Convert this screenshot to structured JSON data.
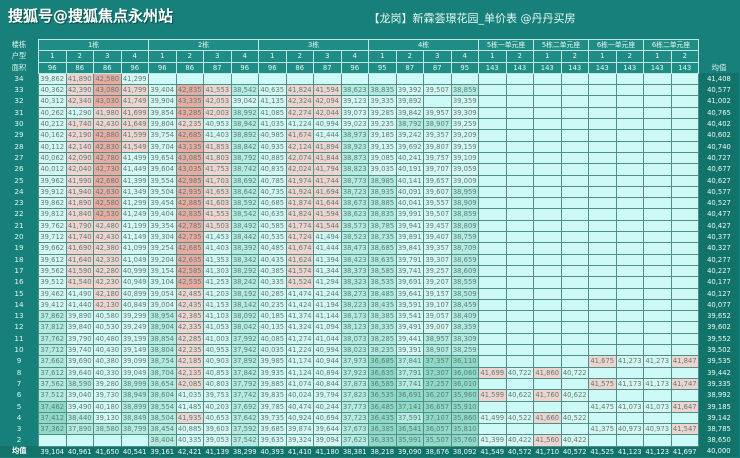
{
  "watermark": "搜狐号@搜狐焦点永州站",
  "title": "【龙岗】新霖荟璟花园_单价表 @丹丹买房",
  "header": {
    "building_label": "楼栋",
    "unit_label": "户型",
    "area_label": "面积",
    "avg_label": "均值",
    "buildings": [
      {
        "name": "1栋",
        "units": [
          "1",
          "2",
          "3",
          "4"
        ],
        "areas": [
          "96",
          "86",
          "86",
          "96"
        ]
      },
      {
        "name": "2栋",
        "units": [
          "1",
          "2",
          "3",
          "4"
        ],
        "areas": [
          "96",
          "86",
          "87",
          "96"
        ]
      },
      {
        "name": "3栋",
        "units": [
          "1",
          "2",
          "3",
          "4"
        ],
        "areas": [
          "96",
          "86",
          "87",
          "96"
        ]
      },
      {
        "name": "4栋",
        "units": [
          "1",
          "2",
          "3",
          "4"
        ],
        "areas": [
          "95",
          "87",
          "87",
          "95"
        ]
      },
      {
        "name": "5栋一单元座",
        "units": [
          "1",
          "2"
        ],
        "areas": [
          "143",
          "143"
        ]
      },
      {
        "name": "5栋二单元座",
        "units": [
          "1",
          "2"
        ],
        "areas": [
          "143",
          "143"
        ]
      },
      {
        "name": "6栋一单元座",
        "units": [
          "1",
          "2"
        ],
        "areas": [
          "143",
          "143"
        ]
      },
      {
        "name": "6栋二单元座",
        "units": [
          "1",
          "2"
        ],
        "areas": [
          "143",
          "143"
        ]
      }
    ]
  },
  "colors": {
    "high": "#e9aaa0",
    "mid_high": "#efd3ce",
    "mid": "#d6f7f1",
    "low": "#b4eadf",
    "lowest": "#8fd9c6",
    "empty": "#cdfaf6",
    "background": "#17807a"
  },
  "rows": [
    {
      "floor": "34",
      "values": [
        "39,862",
        "41,890",
        "42,580",
        "41,299",
        "",
        "",
        "",
        "",
        "",
        "",
        "",
        "",
        "",
        "",
        "",
        "",
        "",
        "",
        "",
        "",
        "",
        "",
        "",
        ""
      ],
      "avg": "41,408"
    },
    {
      "floor": "33",
      "values": [
        "40,362",
        "42,390",
        "43,080",
        "41,799",
        "39,404",
        "42,835",
        "41,553",
        "38,542",
        "40,635",
        "41,824",
        "41,594",
        "38,623",
        "38,835",
        "39,392",
        "39,507",
        "38,859",
        "",
        "",
        "",
        "",
        "",
        "",
        "",
        ""
      ],
      "avg": "40,577"
    },
    {
      "floor": "32",
      "values": [
        "40,312",
        "42,340",
        "43,030",
        "41,749",
        "39,904",
        "43,335",
        "42,053",
        "39,042",
        "41,135",
        "42,324",
        "42,094",
        "39,123",
        "39,335",
        "39,892",
        "",
        "39,359",
        "",
        "",
        "",
        "",
        "",
        "",
        "",
        ""
      ],
      "avg": "41,002"
    },
    {
      "floor": "31",
      "values": [
        "40,262",
        "41,290",
        "41,980",
        "41,699",
        "39,854",
        "43,285",
        "42,003",
        "38,992",
        "41,085",
        "42,274",
        "42,044",
        "39,073",
        "39,285",
        "39,842",
        "39,957",
        "39,309",
        "",
        "",
        "",
        "",
        "",
        "",
        "",
        ""
      ],
      "avg": "40,765"
    },
    {
      "floor": "30",
      "values": [
        "40,212",
        "41,740",
        "42,430",
        "41,649",
        "39,804",
        "42,235",
        "40,953",
        "38,942",
        "41,035",
        "41,224",
        "40,994",
        "39,023",
        "39,235",
        "38,792",
        "38,907",
        "39,259",
        "",
        "",
        "",
        "",
        "",
        "",
        "",
        ""
      ],
      "avg": "40,402"
    },
    {
      "floor": "29",
      "values": [
        "40,162",
        "42,190",
        "42,880",
        "41,599",
        "39,754",
        "42,685",
        "41,403",
        "38,892",
        "40,985",
        "41,674",
        "41,444",
        "38,973",
        "39,185",
        "39,242",
        "39,357",
        "39,209",
        "",
        "",
        "",
        "",
        "",
        "",
        "",
        ""
      ],
      "avg": "40,602"
    },
    {
      "floor": "28",
      "values": [
        "40,112",
        "42,140",
        "42,830",
        "41,549",
        "39,704",
        "43,135",
        "41,853",
        "38,842",
        "40,935",
        "42,124",
        "41,894",
        "38,923",
        "39,135",
        "39,692",
        "39,807",
        "39,159",
        "",
        "",
        "",
        "",
        "",
        "",
        "",
        ""
      ],
      "avg": "40,740"
    },
    {
      "floor": "27",
      "values": [
        "40,062",
        "42,090",
        "42,780",
        "41,499",
        "39,654",
        "43,085",
        "41,803",
        "38,792",
        "40,885",
        "42,074",
        "41,844",
        "38,873",
        "39,085",
        "40,241",
        "39,757",
        "39,109",
        "",
        "",
        "",
        "",
        "",
        "",
        "",
        ""
      ],
      "avg": "40,727"
    },
    {
      "floor": "26",
      "values": [
        "40,012",
        "42,040",
        "42,730",
        "41,449",
        "39,604",
        "43,035",
        "41,753",
        "38,742",
        "40,835",
        "42,024",
        "41,794",
        "38,823",
        "39,035",
        "40,191",
        "39,707",
        "39,059",
        "",
        "",
        "",
        "",
        "",
        "",
        "",
        ""
      ],
      "avg": "40,677"
    },
    {
      "floor": "25",
      "values": [
        "39,962",
        "41,990",
        "42,680",
        "41,399",
        "39,554",
        "42,985",
        "41,703",
        "38,692",
        "40,785",
        "41,974",
        "41,744",
        "38,773",
        "38,985",
        "40,141",
        "39,657",
        "39,009",
        "",
        "",
        "",
        "",
        "",
        "",
        "",
        ""
      ],
      "avg": "40,627"
    },
    {
      "floor": "24",
      "values": [
        "39,912",
        "41,940",
        "42,630",
        "41,349",
        "39,504",
        "42,935",
        "41,653",
        "38,642",
        "40,735",
        "41,924",
        "41,694",
        "38,723",
        "38,935",
        "40,091",
        "39,607",
        "38,959",
        "",
        "",
        "",
        "",
        "",
        "",
        "",
        ""
      ],
      "avg": "40,577"
    },
    {
      "floor": "23",
      "values": [
        "39,862",
        "41,890",
        "42,580",
        "41,299",
        "39,454",
        "42,885",
        "41,603",
        "38,592",
        "40,685",
        "41,874",
        "41,644",
        "38,673",
        "38,885",
        "40,041",
        "39,557",
        "38,909",
        "",
        "",
        "",
        "",
        "",
        "",
        "",
        ""
      ],
      "avg": "40,527"
    },
    {
      "floor": "22",
      "values": [
        "39,812",
        "41,840",
        "42,530",
        "41,249",
        "39,404",
        "42,835",
        "41,553",
        "38,542",
        "40,635",
        "41,824",
        "41,594",
        "38,623",
        "38,835",
        "39,991",
        "39,507",
        "38,859",
        "",
        "",
        "",
        "",
        "",
        "",
        "",
        ""
      ],
      "avg": "40,477"
    },
    {
      "floor": "21",
      "values": [
        "39,762",
        "41,790",
        "42,480",
        "41,199",
        "39,354",
        "42,785",
        "41,503",
        "38,492",
        "40,585",
        "41,774",
        "41,544",
        "38,573",
        "38,785",
        "39,941",
        "39,457",
        "38,809",
        "",
        "",
        "",
        "",
        "",
        "",
        "",
        ""
      ],
      "avg": "40,427"
    },
    {
      "floor": "20",
      "values": [
        "39,712",
        "41,740",
        "42,430",
        "41,149",
        "39,304",
        "42,735",
        "41,453",
        "38,442",
        "40,535",
        "41,724",
        "41,494",
        "38,523",
        "38,735",
        "39,891",
        "39,407",
        "38,759",
        "",
        "",
        "",
        "",
        "",
        "",
        "",
        ""
      ],
      "avg": "40,377"
    },
    {
      "floor": "19",
      "values": [
        "39,662",
        "41,690",
        "42,380",
        "41,099",
        "39,254",
        "42,685",
        "41,403",
        "38,392",
        "40,485",
        "41,674",
        "41,444",
        "38,473",
        "38,685",
        "39,841",
        "39,357",
        "38,709",
        "",
        "",
        "",
        "",
        "",
        "",
        "",
        ""
      ],
      "avg": "40,327"
    },
    {
      "floor": "18",
      "values": [
        "39,612",
        "41,640",
        "42,330",
        "41,049",
        "39,204",
        "42,635",
        "41,353",
        "38,342",
        "40,435",
        "41,624",
        "41,394",
        "38,423",
        "38,635",
        "39,791",
        "39,307",
        "38,659",
        "",
        "",
        "",
        "",
        "",
        "",
        "",
        ""
      ],
      "avg": "40,277"
    },
    {
      "floor": "17",
      "values": [
        "39,562",
        "41,590",
        "42,280",
        "40,999",
        "39,154",
        "42,585",
        "41,303",
        "38,292",
        "40,385",
        "41,574",
        "41,344",
        "38,373",
        "38,585",
        "39,741",
        "39,257",
        "38,609",
        "",
        "",
        "",
        "",
        "",
        "",
        "",
        ""
      ],
      "avg": "40,227"
    },
    {
      "floor": "16",
      "values": [
        "39,512",
        "41,540",
        "42,230",
        "40,949",
        "39,104",
        "42,535",
        "41,253",
        "38,242",
        "40,335",
        "41,524",
        "41,294",
        "38,323",
        "38,535",
        "39,691",
        "39,207",
        "38,559",
        "",
        "",
        "",
        "",
        "",
        "",
        "",
        ""
      ],
      "avg": "40,177"
    },
    {
      "floor": "15",
      "values": [
        "39,462",
        "41,490",
        "42,180",
        "40,899",
        "39,054",
        "42,485",
        "41,203",
        "38,192",
        "40,285",
        "41,474",
        "41,244",
        "38,273",
        "38,485",
        "39,641",
        "39,157",
        "38,509",
        "",
        "",
        "",
        "",
        "",
        "",
        "",
        ""
      ],
      "avg": "40,127"
    },
    {
      "floor": "14",
      "values": [
        "39,412",
        "41,440",
        "42,130",
        "40,849",
        "39,004",
        "42,435",
        "41,153",
        "38,142",
        "40,235",
        "41,424",
        "41,194",
        "38,223",
        "38,435",
        "39,591",
        "39,107",
        "38,459",
        "",
        "",
        "",
        "",
        "",
        "",
        "",
        ""
      ],
      "avg": "40,077"
    },
    {
      "floor": "13",
      "values": [
        "37,862",
        "39,890",
        "40,580",
        "39,299",
        "38,954",
        "42,385",
        "41,103",
        "38,092",
        "40,185",
        "41,374",
        "41,144",
        "38,173",
        "38,385",
        "39,541",
        "39,057",
        "38,409",
        "",
        "",
        "",
        "",
        "",
        "",
        "",
        ""
      ],
      "avg": "39,652"
    },
    {
      "floor": "12",
      "values": [
        "37,812",
        "39,840",
        "40,530",
        "39,249",
        "38,904",
        "42,335",
        "41,053",
        "38,042",
        "40,135",
        "41,324",
        "41,094",
        "38,123",
        "38,335",
        "39,491",
        "39,007",
        "38,359",
        "",
        "",
        "",
        "",
        "",
        "",
        "",
        ""
      ],
      "avg": "39,602"
    },
    {
      "floor": "11",
      "values": [
        "37,762",
        "39,790",
        "40,480",
        "39,199",
        "38,854",
        "42,285",
        "41,003",
        "37,992",
        "40,085",
        "41,274",
        "41,044",
        "38,073",
        "38,285",
        "39,441",
        "38,957",
        "38,309",
        "",
        "",
        "",
        "",
        "",
        "",
        "",
        ""
      ],
      "avg": "39,552"
    },
    {
      "floor": "10",
      "values": [
        "37,712",
        "39,740",
        "40,430",
        "39,149",
        "38,804",
        "42,235",
        "40,953",
        "37,942",
        "40,035",
        "41,224",
        "40,994",
        "38,023",
        "38,235",
        "39,391",
        "38,907",
        "38,259",
        "",
        "",
        "",
        "",
        "",
        "",
        "",
        ""
      ],
      "avg": "39,502"
    },
    {
      "floor": "9",
      "values": [
        "37,662",
        "39,690",
        "40,380",
        "39,099",
        "38,754",
        "42,185",
        "40,903",
        "37,892",
        "39,985",
        "41,174",
        "40,944",
        "37,973",
        "36,685",
        "37,841",
        "37,357",
        "36,110",
        "",
        "",
        "",
        "",
        "41,675",
        "41,273",
        "41,273",
        "41,847"
      ],
      "avg": "39,535"
    },
    {
      "floor": "8",
      "values": [
        "37,612",
        "39,640",
        "40,330",
        "39,049",
        "38,704",
        "42,135",
        "40,853",
        "37,842",
        "39,935",
        "41,124",
        "40,894",
        "37,923",
        "36,635",
        "37,791",
        "37,307",
        "36,060",
        "41,699",
        "40,722",
        "41,860",
        "40,722",
        "",
        "",
        "",
        ""
      ],
      "avg": "39,442"
    },
    {
      "floor": "7",
      "values": [
        "37,562",
        "38,590",
        "39,280",
        "38,999",
        "38,654",
        "42,085",
        "40,803",
        "37,792",
        "39,885",
        "41,074",
        "40,844",
        "37,873",
        "36,585",
        "37,741",
        "37,257",
        "36,010",
        "",
        "",
        "",
        "",
        "41,575",
        "41,173",
        "41,173",
        "41,747"
      ],
      "avg": "39,335"
    },
    {
      "floor": "6",
      "values": [
        "37,512",
        "39,040",
        "39,730",
        "38,949",
        "38,604",
        "41,035",
        "39,753",
        "37,742",
        "39,835",
        "40,024",
        "39,794",
        "37,823",
        "36,535",
        "36,691",
        "36,207",
        "35,960",
        "41,599",
        "40,622",
        "41,760",
        "40,622",
        "",
        "",
        "",
        ""
      ],
      "avg": "38,992"
    },
    {
      "floor": "5",
      "values": [
        "37,462",
        "39,490",
        "40,180",
        "38,899",
        "38,554",
        "41,485",
        "40,203",
        "37,692",
        "39,785",
        "40,474",
        "40,244",
        "37,773",
        "36,485",
        "37,141",
        "36,657",
        "35,910",
        "",
        "",
        "",
        "",
        "41,475",
        "41,073",
        "41,073",
        "41,647"
      ],
      "avg": "39,185"
    },
    {
      "floor": "4",
      "values": [
        "37,412",
        "38,440",
        "39,130",
        "38,849",
        "38,504",
        "41,935",
        "40,653",
        "37,642",
        "39,735",
        "40,924",
        "40,694",
        "37,723",
        "36,435",
        "37,591",
        "37,107",
        "35,860",
        "41,499",
        "40,522",
        "41,660",
        "40,522",
        "",
        "",
        "",
        ""
      ],
      "avg": "39,142"
    },
    {
      "floor": "3",
      "values": [
        "37,362",
        "37,890",
        "38,580",
        "38,799",
        "38,454",
        "40,885",
        "39,603",
        "37,592",
        "39,685",
        "39,874",
        "39,644",
        "37,673",
        "36,385",
        "36,541",
        "36,057",
        "35,810",
        "",
        "",
        "",
        "",
        "41,375",
        "40,973",
        "40,973",
        "41,547"
      ],
      "avg": "38,785"
    },
    {
      "floor": "2",
      "values": [
        "",
        "",
        "",
        "",
        "38,404",
        "40,335",
        "39,053",
        "37,542",
        "39,635",
        "39,324",
        "39,094",
        "37,623",
        "36,335",
        "35,991",
        "35,507",
        "35,760",
        "41,399",
        "40,422",
        "41,560",
        "40,422",
        "",
        "",
        "",
        ""
      ],
      "avg": "38,650"
    }
  ],
  "averages": {
    "label": "均值",
    "values": [
      "39,104",
      "40,961",
      "41,650",
      "40,541",
      "39,161",
      "42,421",
      "41,139",
      "38,299",
      "40,393",
      "41,410",
      "41,180",
      "38,381",
      "38,218",
      "39,090",
      "38,676",
      "38,092",
      "41,549",
      "40,572",
      "41,710",
      "40,572",
      "41,525",
      "41,123",
      "41,123",
      "41,697"
    ],
    "overall": "40,000"
  }
}
